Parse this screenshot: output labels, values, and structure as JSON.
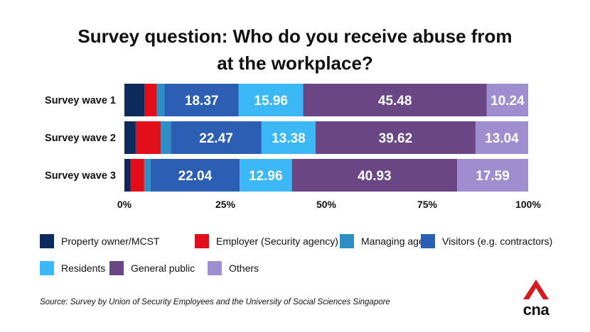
{
  "chart_data": {
    "type": "bar",
    "orientation": "horizontal",
    "stacked": true,
    "title_lines": [
      "Survey question: Who do you receive abuse from",
      "at the workplace?"
    ],
    "categories": [
      "Survey wave 1",
      "Survey wave 2",
      "Survey wave 3"
    ],
    "series": [
      {
        "name": "Property owner/MCST",
        "color": "#0d2a5c",
        "values": [
          5.0,
          2.8,
          1.5
        ],
        "labels": [
          "",
          "",
          ""
        ]
      },
      {
        "name": "Employer (Security agency)",
        "color": "#e20f1a",
        "values": [
          3.0,
          6.2,
          3.4
        ],
        "labels": [
          "",
          "",
          ""
        ]
      },
      {
        "name": "Managing agent",
        "color": "#2f8fc4",
        "values": [
          1.95,
          2.49,
          1.58
        ],
        "labels": [
          "",
          "",
          ""
        ]
      },
      {
        "name": "Visitors (e.g. contractors)",
        "color": "#2c5fb3",
        "values": [
          18.37,
          22.47,
          22.04
        ],
        "labels": [
          "18.37",
          "22.47",
          "22.04"
        ]
      },
      {
        "name": "Residents",
        "color": "#3bb8f5",
        "values": [
          15.96,
          13.38,
          12.96
        ],
        "labels": [
          "15.96",
          "13.38",
          "12.96"
        ]
      },
      {
        "name": "General public",
        "color": "#6a4784",
        "values": [
          45.48,
          39.62,
          40.93
        ],
        "labels": [
          "45.48",
          "39.62",
          "40.93"
        ]
      },
      {
        "name": "Others",
        "color": "#9e8dcf",
        "values": [
          10.24,
          13.04,
          17.59
        ],
        "labels": [
          "10.24",
          "13.04",
          "17.59"
        ]
      }
    ],
    "xlim": [
      0,
      100
    ],
    "xticks": [
      "0%",
      "25%",
      "50%",
      "75%",
      "100%"
    ],
    "grid": false,
    "legend_position": "bottom",
    "source": "Source: Survey by Union of Security Employees and the University of Social Sciences Singapore"
  },
  "logo": {
    "text": "cna",
    "color": "#d71920"
  }
}
